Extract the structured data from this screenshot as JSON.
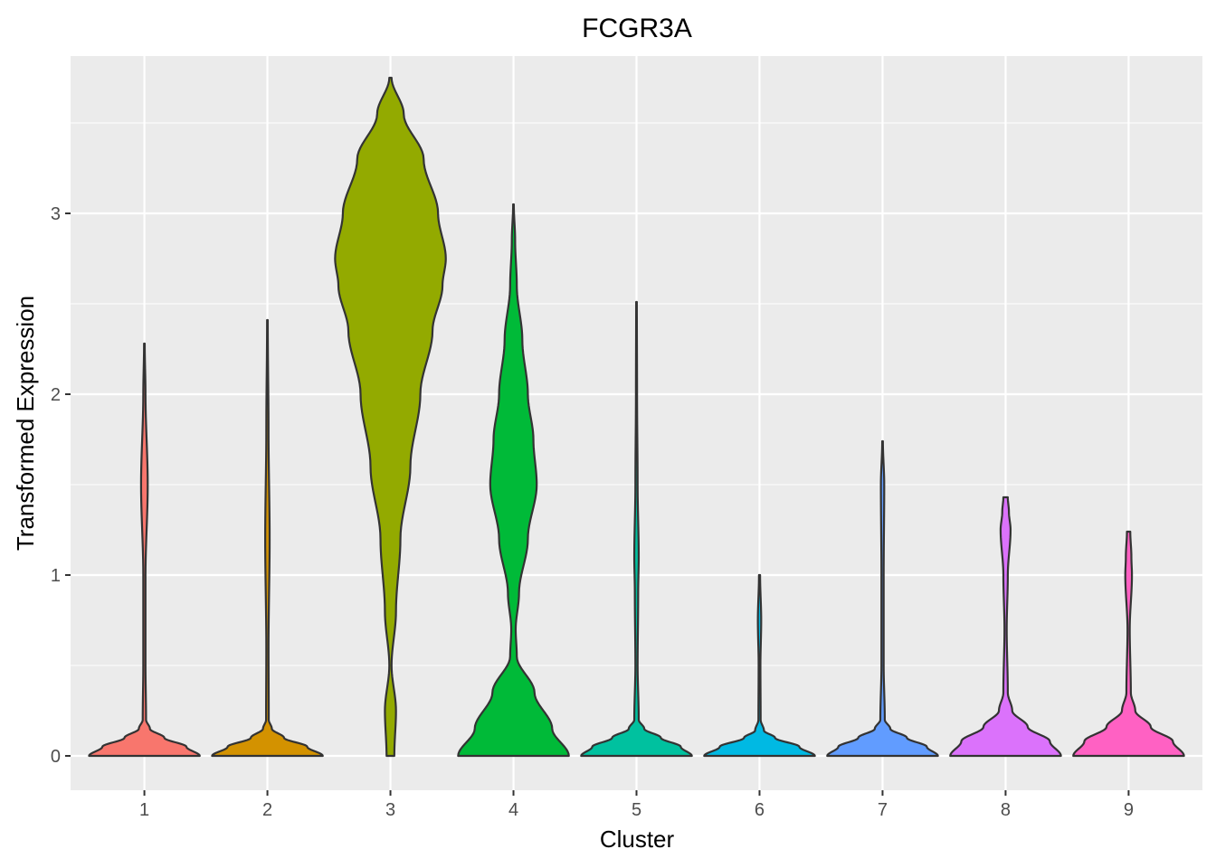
{
  "chart_data": {
    "type": "violin",
    "title": "FCGR3A",
    "xlabel": "Cluster",
    "ylabel": "Transformed Expression",
    "ylim": [
      -0.19,
      3.87
    ],
    "yticks": [
      0,
      1,
      2,
      3
    ],
    "grid": true,
    "legend": "none",
    "categories": [
      "1",
      "2",
      "3",
      "4",
      "5",
      "6",
      "7",
      "8",
      "9"
    ],
    "colors": [
      "#F8766D",
      "#D39200",
      "#93AA00",
      "#00BA38",
      "#00C19F",
      "#00B9E3",
      "#619CFF",
      "#DB72FB",
      "#FF61C3"
    ],
    "series": [
      {
        "values": [
          [
            0,
            0.5
          ],
          [
            0.05,
            0.38
          ],
          [
            0.1,
            0.18
          ],
          [
            0.15,
            0.05
          ],
          [
            0.2,
            0.015
          ],
          [
            0.5,
            0.01
          ],
          [
            1.0,
            0.01
          ],
          [
            1.5,
            0.03
          ],
          [
            2.0,
            0.01
          ],
          [
            2.28,
            0.003
          ]
        ]
      },
      {
        "values": [
          [
            0,
            0.5
          ],
          [
            0.05,
            0.36
          ],
          [
            0.1,
            0.15
          ],
          [
            0.15,
            0.04
          ],
          [
            0.2,
            0.012
          ],
          [
            0.6,
            0.01
          ],
          [
            1.2,
            0.02
          ],
          [
            1.8,
            0.01
          ],
          [
            2.41,
            0.003
          ]
        ]
      },
      {
        "values": [
          [
            0,
            0.035
          ],
          [
            0.25,
            0.05
          ],
          [
            0.5,
            0.01
          ],
          [
            0.8,
            0.05
          ],
          [
            1.2,
            0.09
          ],
          [
            1.6,
            0.18
          ],
          [
            2.0,
            0.27
          ],
          [
            2.35,
            0.38
          ],
          [
            2.6,
            0.47
          ],
          [
            2.75,
            0.5
          ],
          [
            3.0,
            0.43
          ],
          [
            3.3,
            0.3
          ],
          [
            3.55,
            0.12
          ],
          [
            3.75,
            0.01
          ]
        ]
      },
      {
        "values": [
          [
            0,
            0.5
          ],
          [
            0.15,
            0.35
          ],
          [
            0.35,
            0.19
          ],
          [
            0.55,
            0.03
          ],
          [
            0.7,
            0.02
          ],
          [
            0.9,
            0.05
          ],
          [
            1.2,
            0.13
          ],
          [
            1.5,
            0.21
          ],
          [
            1.75,
            0.18
          ],
          [
            2.0,
            0.13
          ],
          [
            2.3,
            0.08
          ],
          [
            2.6,
            0.03
          ],
          [
            2.85,
            0.015
          ],
          [
            3.05,
            0.003
          ]
        ]
      },
      {
        "values": [
          [
            0,
            0.5
          ],
          [
            0.05,
            0.4
          ],
          [
            0.1,
            0.22
          ],
          [
            0.15,
            0.07
          ],
          [
            0.2,
            0.02
          ],
          [
            0.5,
            0.01
          ],
          [
            0.9,
            0.015
          ],
          [
            1.1,
            0.02
          ],
          [
            1.5,
            0.01
          ],
          [
            2.0,
            0.005
          ],
          [
            2.51,
            0.003
          ]
        ]
      },
      {
        "values": [
          [
            0,
            0.5
          ],
          [
            0.05,
            0.36
          ],
          [
            0.1,
            0.14
          ],
          [
            0.14,
            0.04
          ],
          [
            0.2,
            0.01
          ],
          [
            0.5,
            0.008
          ],
          [
            0.75,
            0.015
          ],
          [
            1.0,
            0.005
          ]
        ]
      },
      {
        "values": [
          [
            0,
            0.5
          ],
          [
            0.05,
            0.4
          ],
          [
            0.1,
            0.22
          ],
          [
            0.15,
            0.07
          ],
          [
            0.2,
            0.02
          ],
          [
            0.5,
            0.01
          ],
          [
            1.0,
            0.01
          ],
          [
            1.5,
            0.015
          ],
          [
            1.74,
            0.003
          ]
        ]
      },
      {
        "values": [
          [
            0,
            0.5
          ],
          [
            0.08,
            0.4
          ],
          [
            0.16,
            0.2
          ],
          [
            0.25,
            0.06
          ],
          [
            0.35,
            0.02
          ],
          [
            0.7,
            0.01
          ],
          [
            1.0,
            0.02
          ],
          [
            1.25,
            0.045
          ],
          [
            1.35,
            0.03
          ],
          [
            1.43,
            0.02
          ]
        ]
      },
      {
        "values": [
          [
            0,
            0.5
          ],
          [
            0.08,
            0.4
          ],
          [
            0.16,
            0.2
          ],
          [
            0.25,
            0.06
          ],
          [
            0.35,
            0.02
          ],
          [
            0.7,
            0.01
          ],
          [
            1.0,
            0.03
          ],
          [
            1.1,
            0.025
          ],
          [
            1.24,
            0.015
          ]
        ]
      }
    ]
  }
}
